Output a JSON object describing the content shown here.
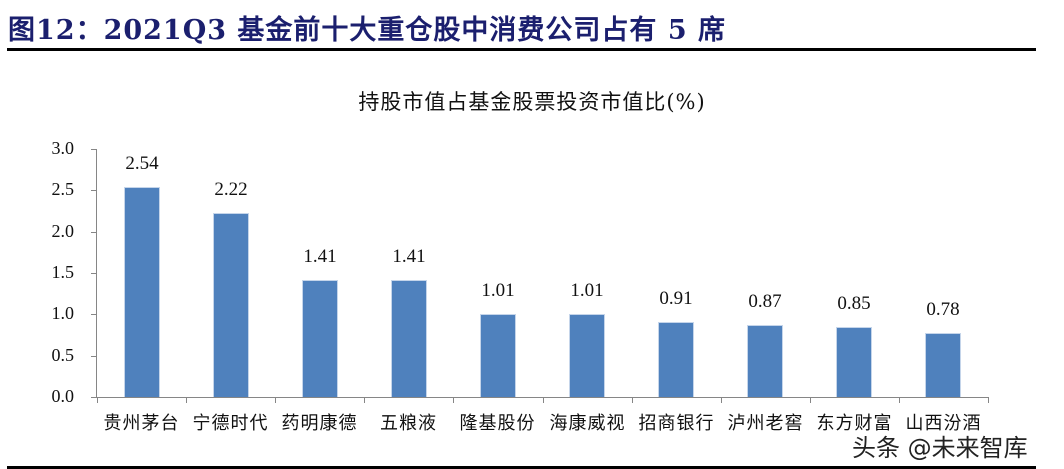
{
  "figure": {
    "title": "图12：2021Q3 基金前十大重仓股中消费公司占有 5 席",
    "watermark": "头条 @未来智库"
  },
  "colors": {
    "bar": "#4f81bd",
    "title": "#1b1f6e",
    "axis": "#868686"
  },
  "chart_data": {
    "type": "bar",
    "title": "持股市值占基金股票投资市值比(%)",
    "xlabel": "",
    "ylabel": "",
    "categories": [
      "贵州茅台",
      "宁德时代",
      "药明康德",
      "五粮液",
      "隆基股份",
      "海康威视",
      "招商银行",
      "泸州老窖",
      "东方财富",
      "山西汾酒"
    ],
    "values": [
      2.54,
      2.22,
      1.41,
      1.41,
      1.01,
      1.01,
      0.91,
      0.87,
      0.85,
      0.78
    ],
    "value_labels": [
      "2.54",
      "2.22",
      "1.41",
      "1.41",
      "1.01",
      "1.01",
      "0.91",
      "0.87",
      "0.85",
      "0.78"
    ],
    "ylim": [
      0,
      3.0
    ],
    "yticks": [
      "0.0",
      "0.5",
      "1.0",
      "1.5",
      "2.0",
      "2.5",
      "3.0"
    ],
    "grid": false,
    "legend": null,
    "data_labels": true
  }
}
